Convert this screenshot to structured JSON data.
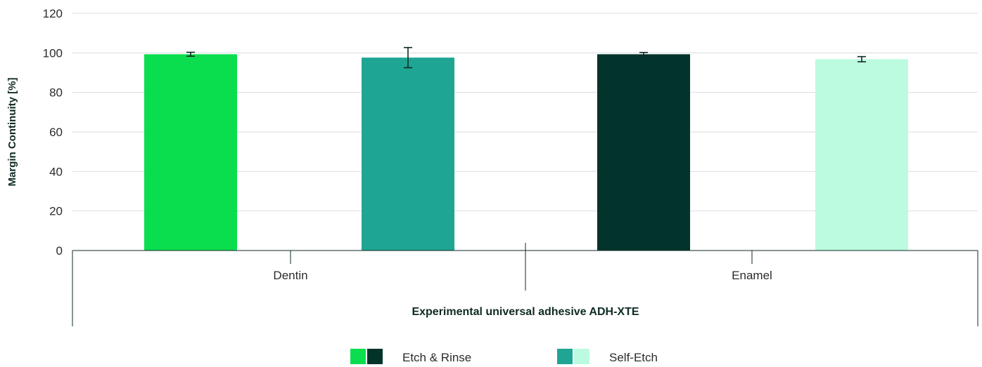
{
  "chart_data": {
    "type": "bar",
    "ylabel": "Margin Continuity [%]",
    "xlabel": "Experimental universal adhesive ADH-XTE",
    "ylim": [
      0,
      120
    ],
    "yticks": [
      0,
      20,
      40,
      60,
      80,
      100,
      120
    ],
    "categories": [
      "Dentin",
      "Enamel"
    ],
    "bars": [
      {
        "category": "Dentin",
        "legend": "Etch & Rinse",
        "value": 99.3,
        "err": 1.0,
        "color": "#0ade4e"
      },
      {
        "category": "Dentin",
        "legend": "Self-Etch",
        "value": 97.6,
        "err": 5.1,
        "color": "#1fa594"
      },
      {
        "category": "Enamel",
        "legend": "Etch & Rinse",
        "value": 99.3,
        "err": 0.9,
        "color": "#03342b"
      },
      {
        "category": "Enamel",
        "legend": "Self-Etch",
        "value": 96.8,
        "err": 1.3,
        "color": "#bcfbdf"
      }
    ],
    "legend": [
      {
        "label": "Etch & Rinse",
        "colors": [
          "#0ade4e",
          "#03342b"
        ]
      },
      {
        "label": "Self-Etch",
        "colors": [
          "#1fa594",
          "#bcfbdf"
        ]
      }
    ],
    "grid": true,
    "legend_position": "bottom"
  }
}
